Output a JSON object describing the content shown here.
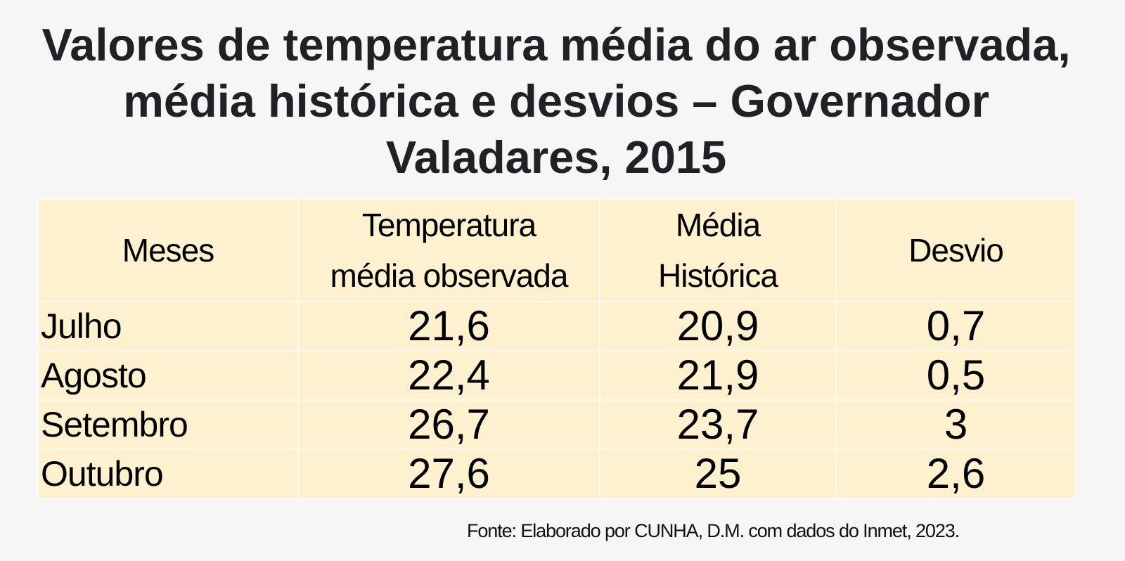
{
  "title": {
    "lines": [
      "Valores de temperatura média do ar observada,",
      "média histórica e desvios – Governador",
      "Valadares, 2015"
    ]
  },
  "table": {
    "headers": [
      [
        "Meses"
      ],
      [
        "Temperatura",
        "média observada"
      ],
      [
        "Média",
        "Histórica"
      ],
      [
        "Desvio"
      ]
    ],
    "rows": [
      {
        "month": "Julho",
        "observed": "21,6",
        "historical": "20,9",
        "deviation": "0,7"
      },
      {
        "month": "Agosto",
        "observed": "22,4",
        "historical": "21,9",
        "deviation": "0,5"
      },
      {
        "month": "Setembro",
        "observed": "26,7",
        "historical": "23,7",
        "deviation": "3"
      },
      {
        "month": "Outubro",
        "observed": "27,6",
        "historical": "25",
        "deviation": "2,6"
      }
    ]
  },
  "source": "Fonte: Elaborado por CUNHA, D.M. com dados do Inmet, 2023.",
  "colors": {
    "background": "#f6f6f6",
    "title": "#202124",
    "cell": "#fef1cf",
    "grid": "#fffaf0"
  }
}
